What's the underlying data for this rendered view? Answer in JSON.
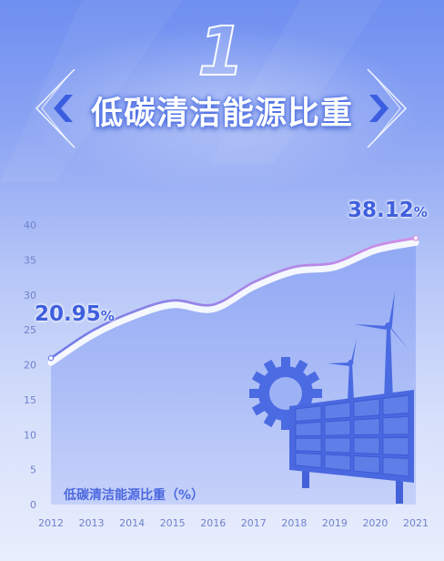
{
  "header": {
    "number": "1",
    "title": "低碳清洁能源比重"
  },
  "chart_data": {
    "type": "area",
    "x": [
      "2012",
      "2013",
      "2014",
      "2015",
      "2016",
      "2017",
      "2018",
      "2019",
      "2020",
      "2021"
    ],
    "y": [
      20.95,
      24.8,
      27.5,
      29.2,
      28.6,
      31.8,
      34,
      34.6,
      37,
      38.12
    ],
    "yticks": [
      0,
      5,
      10,
      15,
      20,
      25,
      30,
      35,
      40
    ],
    "ylim": [
      0,
      40
    ],
    "series_label": "低碳清洁能源比重（%）",
    "annotations": [
      {
        "x": "2012",
        "value": "20.95",
        "unit": "%"
      },
      {
        "x": "2021",
        "value": "38.12",
        "unit": "%"
      }
    ],
    "grid": false,
    "colors": {
      "line_start": "#6f7de6",
      "line_end": "#d58ee8",
      "area": "#8aa3f2",
      "axis_text": "#6f82cc",
      "highlight": "#3f5fdd"
    }
  },
  "decorations": [
    "solar-panel-icon",
    "wind-turbine-icon",
    "sun-gear-icon",
    "chevron-left-icon",
    "chevron-right-icon"
  ]
}
